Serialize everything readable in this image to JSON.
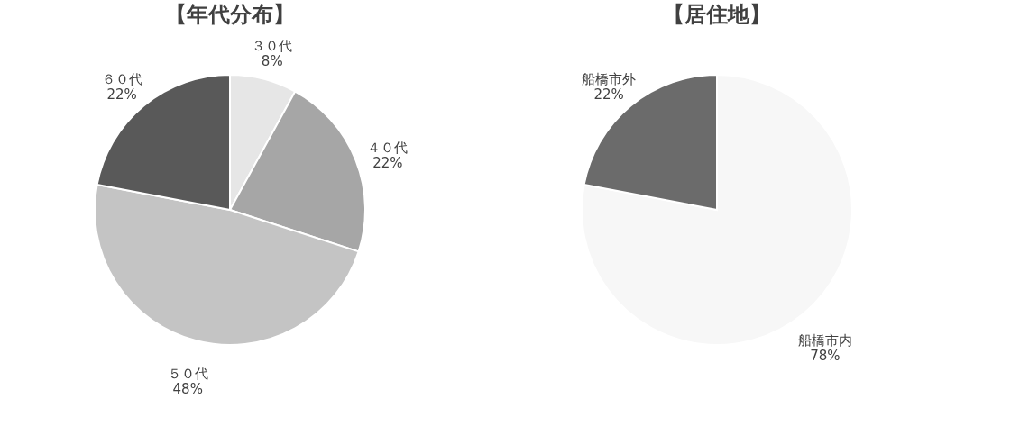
{
  "chart_data": [
    {
      "type": "pie",
      "title": "【年代分布】",
      "categories": [
        "３０代",
        "４０代",
        "５０代",
        "６０代"
      ],
      "values": [
        8,
        22,
        48,
        22
      ],
      "value_labels": [
        "8%",
        "22%",
        "48%",
        "22%"
      ],
      "colors": [
        "#e6e6e6",
        "#a6a6a6",
        "#c4c4c4",
        "#595959"
      ]
    },
    {
      "type": "pie",
      "title": "【居住地】",
      "categories": [
        "船橋市内",
        "船橋市外"
      ],
      "values": [
        78,
        22
      ],
      "value_labels": [
        "78%",
        "22%"
      ],
      "colors": [
        "#f7f7f7",
        "#6b6b6b"
      ]
    }
  ]
}
